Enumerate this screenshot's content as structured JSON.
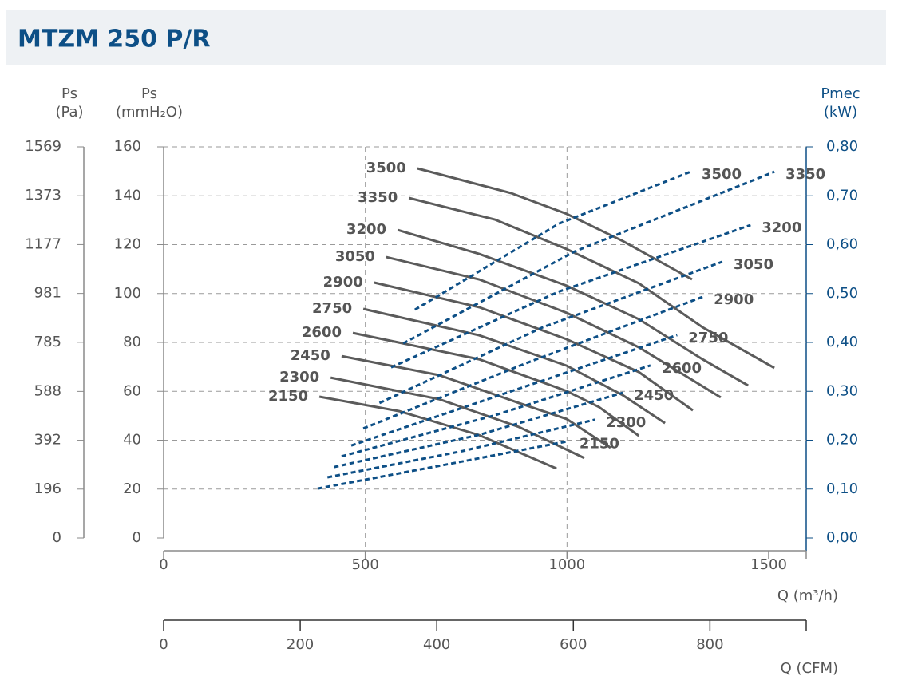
{
  "chart_data": {
    "type": "line",
    "title": "MTZM 250 P/R",
    "ypa_label": [
      "Ps",
      "(Pa)"
    ],
    "ypa_lim": [
      0,
      1569
    ],
    "ypa_ticks": [
      0,
      196,
      392,
      588,
      785,
      981,
      1177,
      1373,
      1569
    ],
    "ylabel": [
      "Ps",
      "(mmH₂O)"
    ],
    "ylim": [
      0,
      160
    ],
    "yticks": [
      0,
      20,
      40,
      60,
      80,
      100,
      120,
      140,
      160
    ],
    "y2label": [
      "Pmec",
      "(kW)"
    ],
    "y2lim": [
      0,
      0.8
    ],
    "y2ticks": [
      {
        "value": 0,
        "label": "0,00"
      },
      {
        "value": 0.1,
        "label": "0,10"
      },
      {
        "value": 0.2,
        "label": "0,20"
      },
      {
        "value": 0.3,
        "label": "0,30"
      },
      {
        "value": 0.4,
        "label": "0,40"
      },
      {
        "value": 0.5,
        "label": "0,50"
      },
      {
        "value": 0.6,
        "label": "0,60"
      },
      {
        "value": 0.7,
        "label": "0,70"
      },
      {
        "value": 0.8,
        "label": "0,80"
      }
    ],
    "xlabel": "Q (m³/h)",
    "xlim": [
      0,
      1593
    ],
    "xticks": [
      0,
      500,
      1000,
      1500
    ],
    "xgrid": [
      500,
      1000
    ],
    "x2label": "Q (CFM)",
    "x2lim": [
      0,
      941
    ],
    "x2ticks": [
      0,
      200,
      400,
      600,
      800
    ],
    "grid": true,
    "series": [
      {
        "name": "3500",
        "color": "#5b5b5b",
        "x": [
          629,
          861,
          999,
          1138,
          1310
        ],
        "values": [
          151.2,
          141.1,
          132.6,
          121.5,
          105.8
        ]
      },
      {
        "name": "3350",
        "color": "#5b5b5b",
        "x": [
          608,
          821,
          999,
          1178,
          1336,
          1514
        ],
        "values": [
          139.1,
          130.3,
          118.2,
          104.2,
          86.2,
          69.6
        ]
      },
      {
        "name": "3200",
        "color": "#5b5b5b",
        "x": [
          580,
          782,
          999,
          1178,
          1336,
          1449
        ],
        "values": [
          126.0,
          116.2,
          103.2,
          89.5,
          73.1,
          62.4
        ]
      },
      {
        "name": "3050",
        "color": "#5b5b5b",
        "x": [
          552,
          782,
          999,
          1178,
          1381
        ],
        "values": [
          114.9,
          105.8,
          92.1,
          78.0,
          57.5
        ]
      },
      {
        "name": "2900",
        "color": "#5b5b5b",
        "x": [
          522,
          782,
          999,
          1178,
          1312
        ],
        "values": [
          104.5,
          94.4,
          81.3,
          67.9,
          52.2
        ]
      },
      {
        "name": "2750",
        "color": "#5b5b5b",
        "x": [
          495,
          782,
          999,
          1138,
          1243
        ],
        "values": [
          93.7,
          82.9,
          70.5,
          58.4,
          47.0
        ]
      },
      {
        "name": "2600",
        "color": "#5b5b5b",
        "x": [
          469,
          782,
          999,
          1079,
          1178
        ],
        "values": [
          83.9,
          73.1,
          60.1,
          53.6,
          41.8
        ]
      },
      {
        "name": "2450",
        "color": "#5b5b5b",
        "x": [
          441,
          683,
          881,
          999,
          1108
        ],
        "values": [
          74.4,
          66.6,
          55.2,
          48.7,
          36.9
        ]
      },
      {
        "name": "2300",
        "color": "#5b5b5b",
        "x": [
          414,
          683,
          881,
          1043
        ],
        "values": [
          65.6,
          56.8,
          45.4,
          32.7
        ]
      },
      {
        "name": "2150",
        "color": "#5b5b5b",
        "x": [
          386,
          584,
          782,
          974
        ],
        "values": [
          57.8,
          51.9,
          42.1,
          28.4
        ]
      },
      {
        "name": "2150",
        "color": "#0d4f86",
        "axis": "y2",
        "line_style": "dashed",
        "x": [
          382,
          693,
          1003
        ],
        "values": [
          0.101,
          0.149,
          0.198
        ]
      },
      {
        "name": "2300",
        "color": "#0d4f86",
        "axis": "y2",
        "line_style": "dashed",
        "x": [
          406,
          742,
          1069
        ],
        "values": [
          0.124,
          0.178,
          0.242
        ]
      },
      {
        "name": "2450",
        "color": "#0d4f86",
        "axis": "y2",
        "line_style": "dashed",
        "x": [
          422,
          782,
          1138
        ],
        "values": [
          0.145,
          0.211,
          0.297
        ]
      },
      {
        "name": "2600",
        "color": "#0d4f86",
        "axis": "y2",
        "line_style": "dashed",
        "x": [
          441,
          821,
          1207
        ],
        "values": [
          0.167,
          0.251,
          0.353
        ]
      },
      {
        "name": "2750",
        "color": "#0d4f86",
        "axis": "y2",
        "line_style": "dashed",
        "x": [
          465,
          861,
          1273
        ],
        "values": [
          0.189,
          0.3,
          0.415
        ]
      },
      {
        "name": "2900",
        "color": "#0d4f86",
        "axis": "y2",
        "line_style": "dashed",
        "x": [
          495,
          900,
          1336
        ],
        "values": [
          0.224,
          0.358,
          0.493
        ]
      },
      {
        "name": "3050",
        "color": "#0d4f86",
        "axis": "y2",
        "line_style": "dashed",
        "x": [
          535,
          940,
          1385
        ],
        "values": [
          0.276,
          0.431,
          0.565
        ]
      },
      {
        "name": "3200",
        "color": "#0d4f86",
        "axis": "y2",
        "line_style": "dashed",
        "x": [
          564,
          980,
          1455
        ],
        "values": [
          0.349,
          0.504,
          0.64
        ]
      },
      {
        "name": "3350",
        "color": "#0d4f86",
        "axis": "y2",
        "line_style": "dashed",
        "x": [
          594,
          1019,
          1514
        ],
        "values": [
          0.398,
          0.586,
          0.749
        ]
      },
      {
        "name": "3500",
        "color": "#0d4f86",
        "axis": "y2",
        "line_style": "dashed",
        "x": [
          623,
          980,
          1306
        ],
        "values": [
          0.467,
          0.643,
          0.749
        ]
      }
    ]
  }
}
